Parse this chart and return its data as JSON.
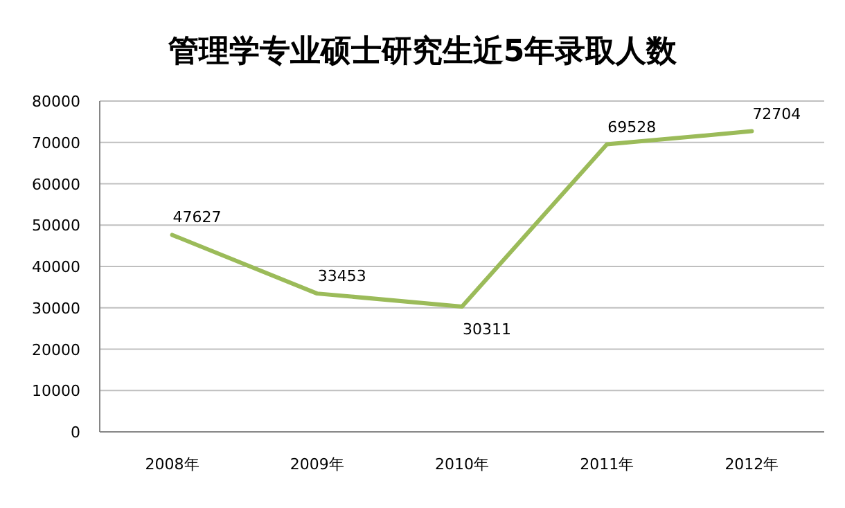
{
  "chart_data": {
    "type": "line",
    "title": "管理学专业硕士研究生近5年录取人数",
    "categories": [
      "2008年",
      "2009年",
      "2010年",
      "2011年",
      "2012年"
    ],
    "series": [
      {
        "color": "#9bbb59",
        "values": [
          47627,
          33453,
          30311,
          69528,
          72704
        ]
      }
    ],
    "ylim": [
      0,
      80000
    ],
    "yticks": [
      0,
      10000,
      20000,
      30000,
      40000,
      50000,
      60000,
      70000,
      80000
    ],
    "grid": "y",
    "data_labels": true,
    "marker": "none",
    "line_style": "solid"
  }
}
